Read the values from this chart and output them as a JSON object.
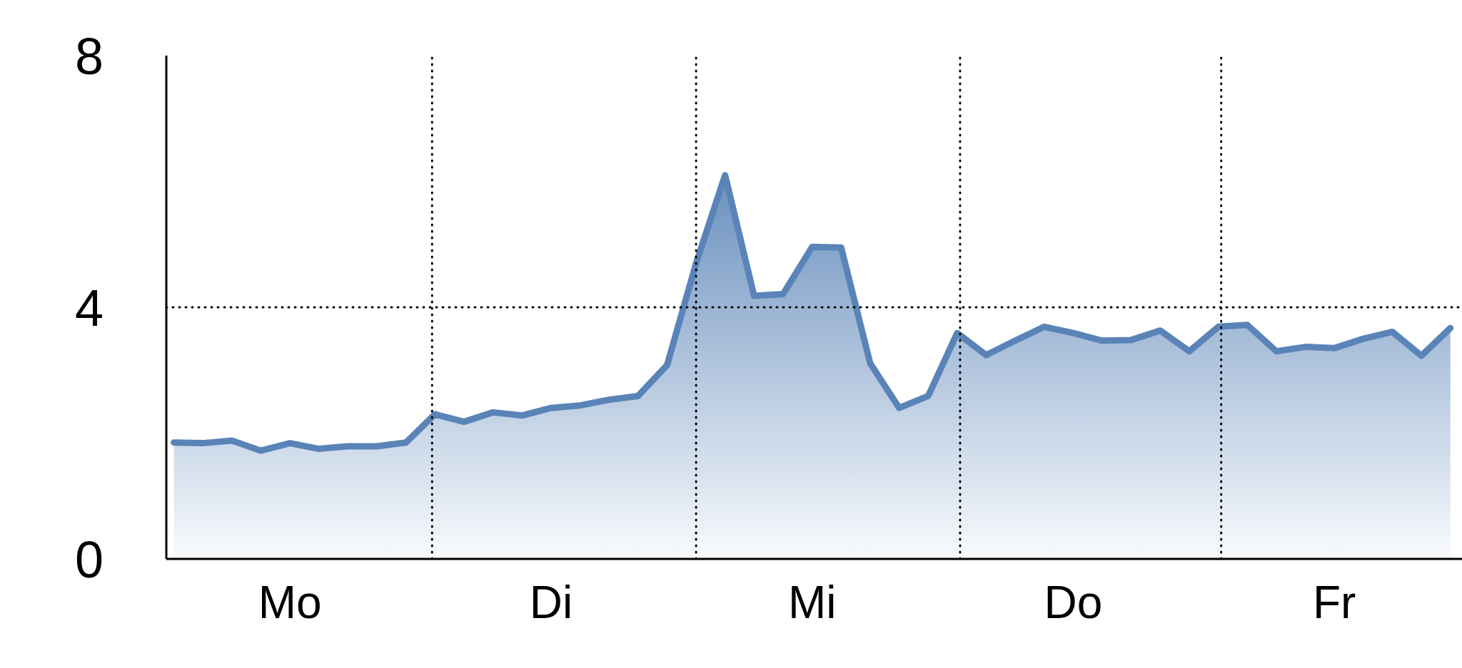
{
  "chart_data": {
    "type": "area",
    "categories": [
      null,
      null,
      null,
      null,
      "Mo",
      null,
      null,
      null,
      null,
      null,
      null,
      null,
      null,
      "Di",
      null,
      null,
      null,
      null,
      null,
      null,
      null,
      null,
      "Mi",
      null,
      null,
      null,
      null,
      null,
      null,
      null,
      null,
      "Do",
      null,
      null,
      null,
      null,
      null,
      null,
      null,
      null,
      "Fr",
      null,
      null,
      null,
      null
    ],
    "series": [
      {
        "color": "#5a84b8",
        "values": [
          1.85,
          1.84,
          1.88,
          1.72,
          1.84,
          1.75,
          1.79,
          1.79,
          1.85,
          2.3,
          2.18,
          2.33,
          2.28,
          2.4,
          2.44,
          2.53,
          2.59,
          3.08,
          4.7,
          6.1,
          4.18,
          4.21,
          4.96,
          4.95,
          3.11,
          2.4,
          2.59,
          3.59,
          3.24,
          3.47,
          3.69,
          3.59,
          3.47,
          3.48,
          3.63,
          3.3,
          3.69,
          3.72,
          3.3,
          3.37,
          3.35,
          3.5,
          3.61,
          3.23,
          3.67
        ]
      }
    ],
    "ylim": [
      0,
      8
    ],
    "yticks": [
      0,
      4,
      8
    ],
    "ref_lines": [
      {
        "axis": "y",
        "value": 4,
        "line_style": "dotted"
      }
    ],
    "grid": "x",
    "legend": false
  }
}
